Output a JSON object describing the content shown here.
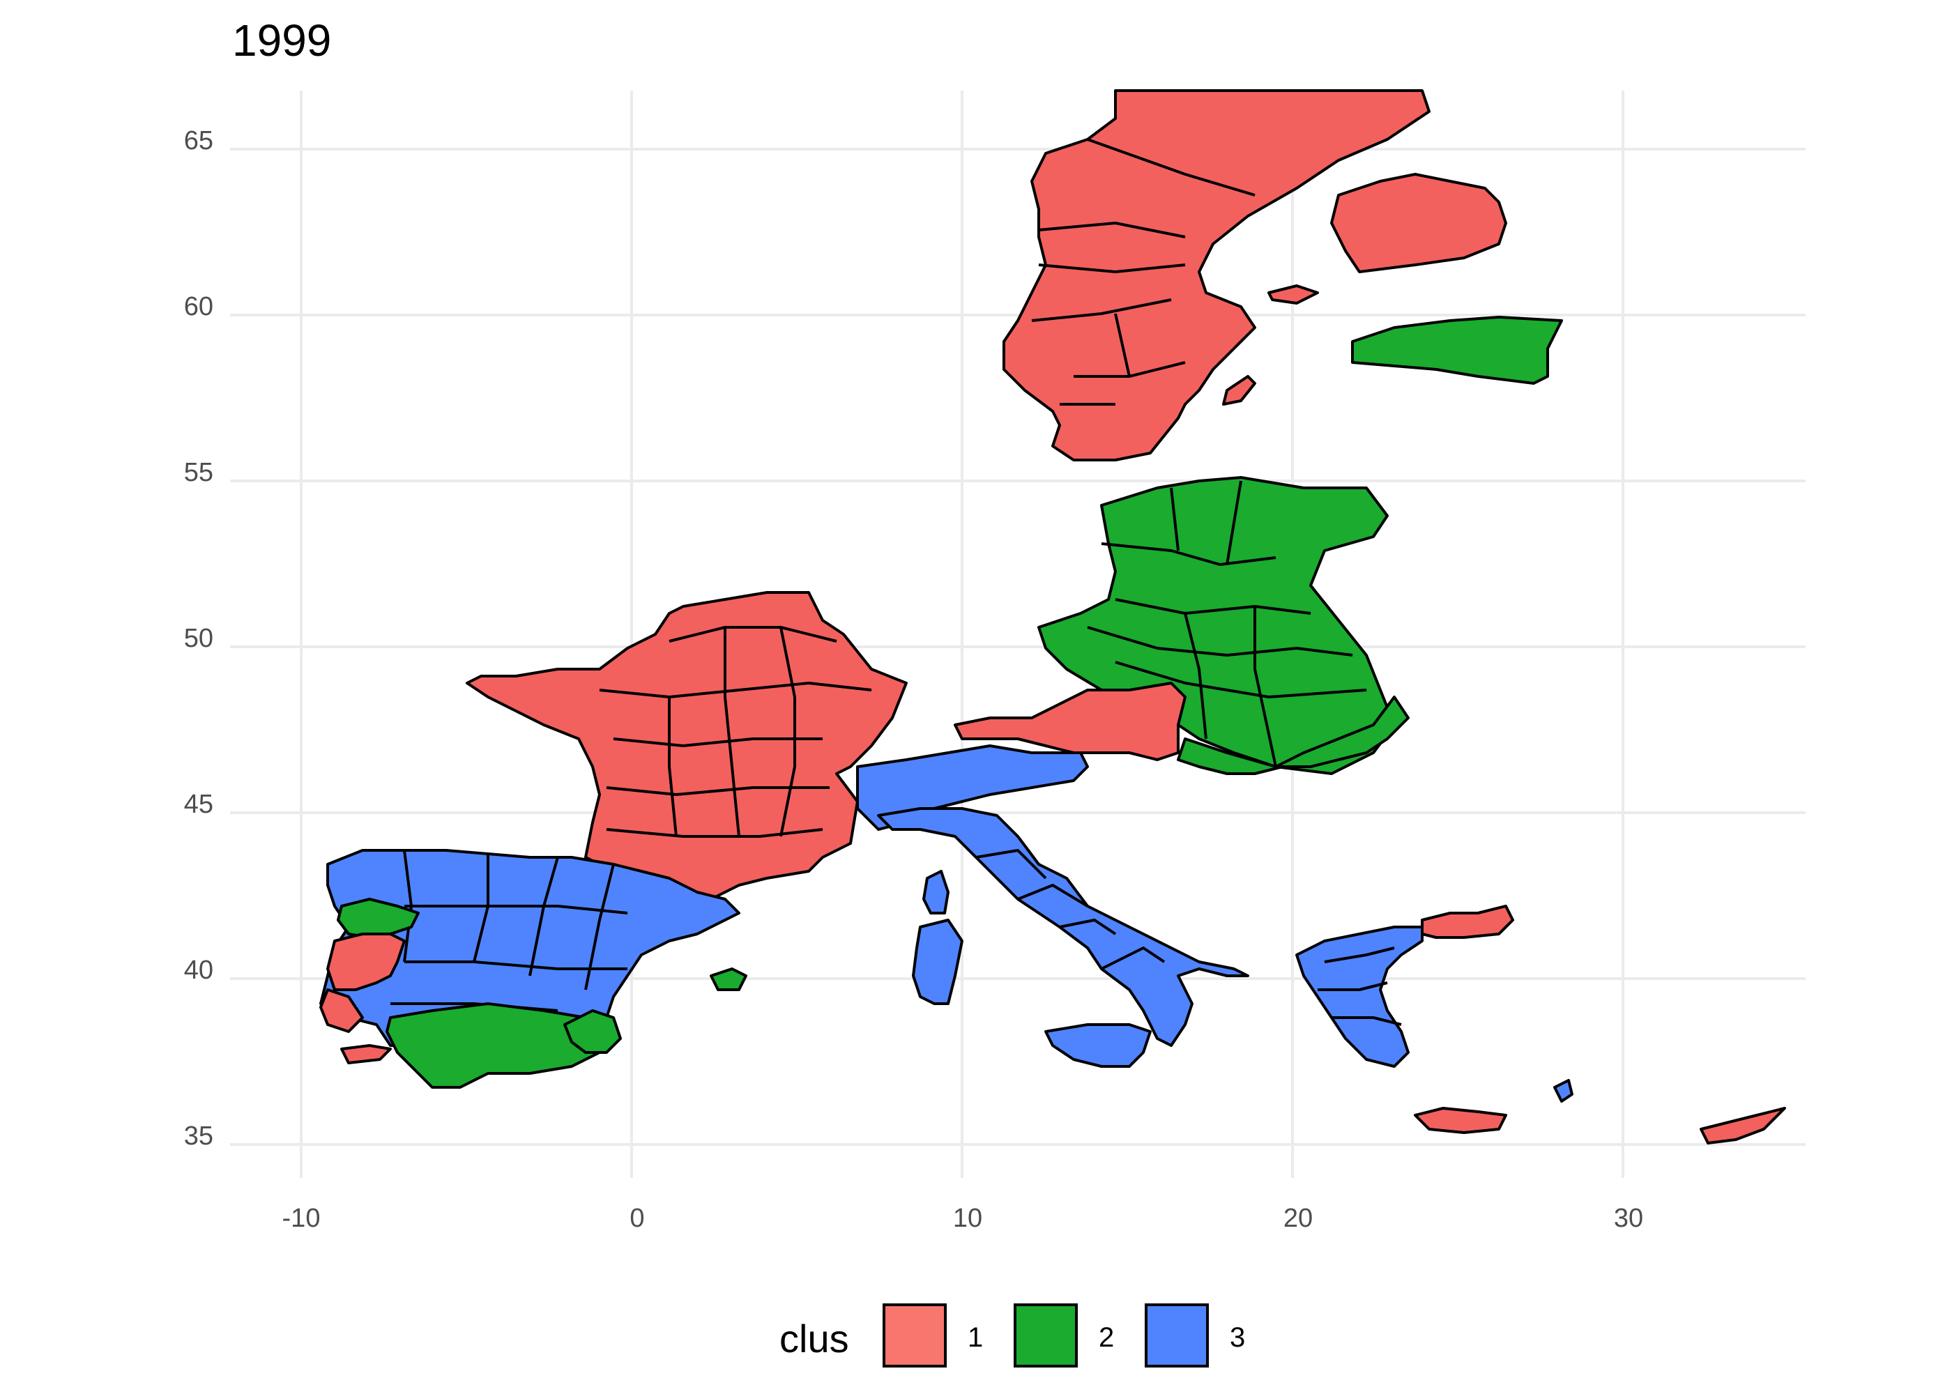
{
  "title": "1999",
  "map": {
    "type": "choropleth",
    "x_ticks": [
      "-10",
      "0",
      "10",
      "20",
      "30"
    ],
    "y_ticks": [
      "65",
      "60",
      "55",
      "50",
      "45",
      "40",
      "35"
    ],
    "legend": {
      "title": "clus",
      "items": [
        {
          "label": "1",
          "color": "#F8766D"
        },
        {
          "label": "2",
          "color": "#1AAB2F"
        },
        {
          "label": "3",
          "color": "#4F84FE"
        }
      ]
    },
    "colors": {
      "clus1": "#F2615E",
      "clus2": "#1AAB2F",
      "clus3": "#4F84FE"
    }
  },
  "chart_data": {
    "type": "map",
    "title": "1999",
    "xlim": [
      -11,
      35
    ],
    "ylim": [
      34,
      66
    ],
    "x_ticks": [
      -10,
      0,
      10,
      20,
      30
    ],
    "y_ticks": [
      35,
      40,
      45,
      50,
      55,
      60,
      65
    ],
    "legend_title": "clus",
    "categories": [
      "1",
      "2",
      "3"
    ],
    "grid": true,
    "legend_position": "bottom"
  }
}
